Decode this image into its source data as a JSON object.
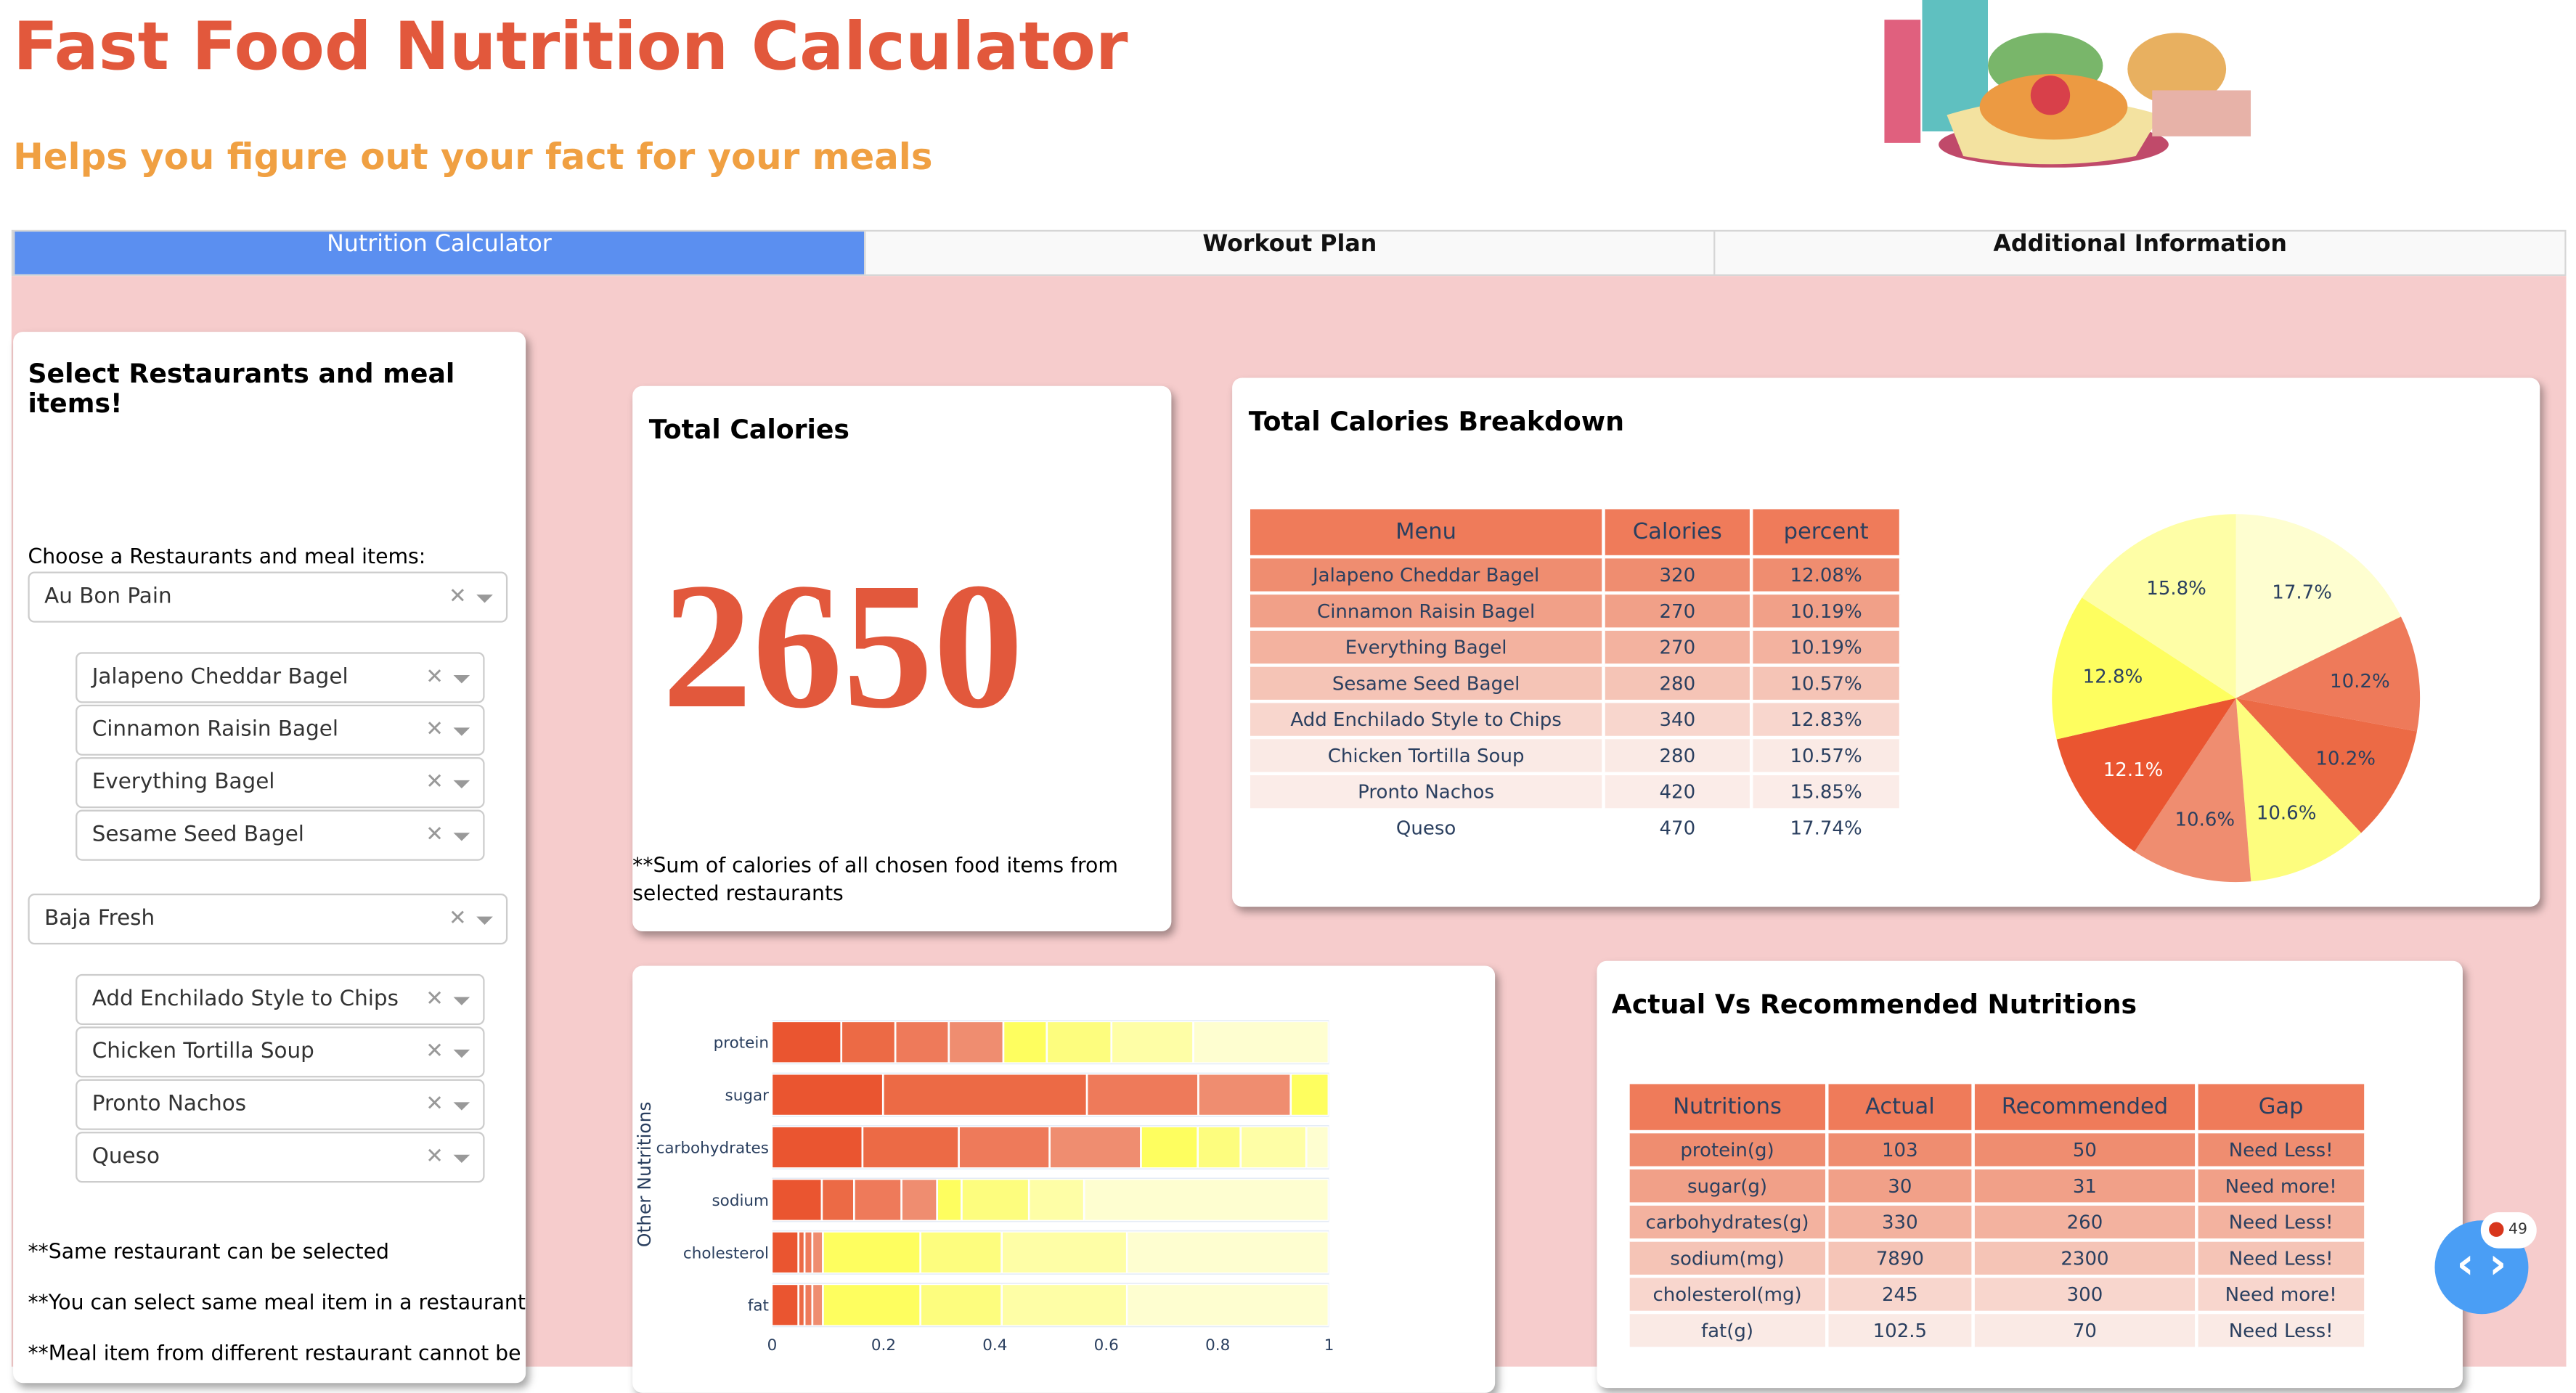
{
  "header": {
    "title": "Fast Food Nutrition Calculator",
    "subtitle": "Helps you figure out your fact for your meals",
    "illustration": "fast-food-illustration"
  },
  "tabs": [
    {
      "label": "Nutrition Calculator",
      "active": true
    },
    {
      "label": "Workout Plan"
    },
    {
      "label": "Additional Information"
    }
  ],
  "selector": {
    "title": "Select Restaurants and meal items!",
    "label": "Choose a Restaurants and meal items:",
    "restaurants": [
      {
        "name": "Au Bon Pain",
        "items": [
          "Jalapeno Cheddar Bagel",
          "Cinnamon Raisin Bagel",
          "Everything Bagel",
          "Sesame Seed Bagel"
        ]
      },
      {
        "name": "Baja Fresh",
        "items": [
          "Add Enchilado Style to Chips",
          "Chicken Tortilla Soup",
          "Pronto Nachos",
          "Queso"
        ]
      }
    ],
    "notes": [
      "**Same restaurant can be selected",
      "**You can select same meal item in a restaurant",
      "**Meal item from different restaurant cannot be"
    ]
  },
  "total": {
    "title": "Total Calories",
    "value": "2650",
    "note": "**Sum of calories of all chosen food items from selected restaurants",
    "color": "#e2583c"
  },
  "breakdown": {
    "title": "Total Calories Breakdown",
    "columns": [
      "Menu",
      "Calories",
      "percent"
    ],
    "rows": [
      [
        "Jalapeno Cheddar Bagel",
        "320",
        "12.08%"
      ],
      [
        "Cinnamon Raisin Bagel",
        "270",
        "10.19%"
      ],
      [
        "Everything Bagel",
        "270",
        "10.19%"
      ],
      [
        "Sesame Seed Bagel",
        "280",
        "10.57%"
      ],
      [
        "Add Enchilado Style to Chips",
        "340",
        "12.83%"
      ],
      [
        "Chicken Tortilla Soup",
        "280",
        "10.57%"
      ],
      [
        "Pronto Nachos",
        "420",
        "15.85%"
      ],
      [
        "Queso",
        "470",
        "17.74%"
      ]
    ],
    "row_colors": [
      "#ef8d70",
      "#f1a088",
      "#f3b29f",
      "#f5c4b6",
      "#f8d6cd",
      "#faeae5",
      "#fbecE8",
      "#ffffff"
    ]
  },
  "chart_data": [
    {
      "type": "pie",
      "slices": [
        {
          "label": "Queso",
          "value": 17.7,
          "color": "#fefed0"
        },
        {
          "label": "Cinnamon Raisin Bagel",
          "value": 10.2,
          "color": "#ee7a5a"
        },
        {
          "label": "Everything Bagel",
          "value": 10.2,
          "color": "#ec6a45"
        },
        {
          "label": "Chicken Tortilla Soup",
          "value": 10.6,
          "color": "#fdfd7e"
        },
        {
          "label": "Sesame Seed Bagel",
          "value": 10.6,
          "color": "#ef8d70"
        },
        {
          "label": "Jalapeno Cheddar Bagel",
          "value": 12.1,
          "color": "#ea5530"
        },
        {
          "label": "Add Enchilado Style to Chips",
          "value": 12.8,
          "color": "#fefe5f"
        },
        {
          "label": "Pronto Nachos",
          "value": 15.8,
          "color": "#fefea6"
        }
      ],
      "text_labels": [
        "17.7%",
        "10.2%",
        "10.2%",
        "10.6%",
        "10.6%",
        "12.1%",
        "12.8%",
        "15.8%"
      ]
    },
    {
      "type": "bar",
      "orientation": "horizontal",
      "stacked": "normalized",
      "ylabel": "Other Nutritions",
      "xlim": [
        0,
        1
      ],
      "xticks": [
        "0",
        "0.2",
        "0.4",
        "0.6",
        "0.8",
        "1"
      ],
      "categories": [
        "protein",
        "sugar",
        "carbohydrates",
        "sodium",
        "cholesterol",
        "fat"
      ],
      "colors": [
        "#ea5530",
        "#ec6a45",
        "#ee7a5a",
        "#ef8d70",
        "#fefe5f",
        "#fdfd7e",
        "#fefea6",
        "#fefed0"
      ],
      "values": [
        [
          0.125,
          0.097,
          0.096,
          0.098,
          0.078,
          0.116,
          0.147,
          0.243
        ],
        [
          0.2,
          0.366,
          0.2,
          0.166,
          0.068
        ],
        [
          0.163,
          0.173,
          0.163,
          0.164,
          0.102,
          0.077,
          0.118,
          0.04
        ],
        [
          0.09,
          0.058,
          0.085,
          0.064,
          0.044,
          0.121,
          0.099,
          0.439
        ],
        [
          0.048,
          0.011,
          0.014,
          0.019,
          0.175,
          0.146,
          0.225,
          0.362
        ],
        [
          0.048,
          0.011,
          0.014,
          0.019,
          0.175,
          0.146,
          0.225,
          0.362
        ]
      ]
    }
  ],
  "nutrition": {
    "title": "Actual Vs Recommended Nutritions",
    "columns": [
      "Nutritions",
      "Actual",
      "Recommended",
      "Gap"
    ],
    "rows": [
      [
        "protein(g)",
        "103",
        "50",
        "Need Less!"
      ],
      [
        "sugar(g)",
        "30",
        "31",
        "Need more!"
      ],
      [
        "carbohydrates(g)",
        "330",
        "260",
        "Need Less!"
      ],
      [
        "sodium(mg)",
        "7890",
        "2300",
        "Need Less!"
      ],
      [
        "cholesterol(mg)",
        "245",
        "300",
        "Need more!"
      ],
      [
        "fat(g)",
        "102.5",
        "70",
        "Need Less!"
      ]
    ],
    "row_colors": [
      "#ef8d70",
      "#f1a088",
      "#f3b29f",
      "#f5c4b6",
      "#f8d6cd",
      "#faeae5"
    ]
  },
  "devtools": {
    "badge": "49",
    "icon": "code-brackets-icon",
    "color": "#4a9ef5"
  }
}
